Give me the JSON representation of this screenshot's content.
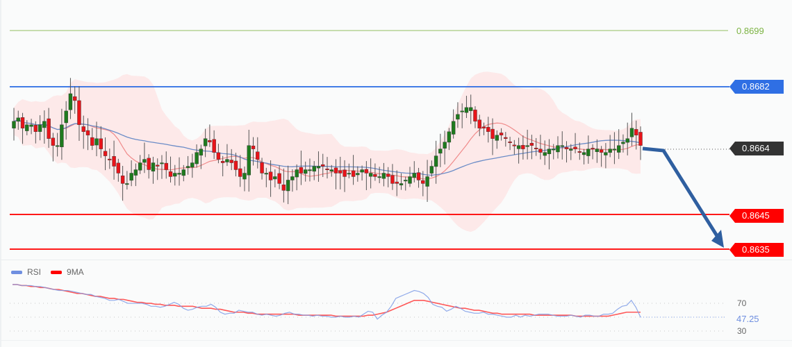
{
  "chart_data": {
    "type": "candlestick",
    "title": "",
    "price_levels": [
      {
        "name": "target-high",
        "value": 0.8699,
        "color": "#7cb342",
        "label": "0.8699",
        "style": "line-green"
      },
      {
        "name": "resistance",
        "value": 0.8682,
        "color": "#2f6fe4",
        "label": "0.8682",
        "style": "tag"
      },
      {
        "name": "current-price",
        "value": 0.8664,
        "color": "#333333",
        "label": "0.8664",
        "style": "tag-dotted"
      },
      {
        "name": "support-1",
        "value": 0.8645,
        "color": "#ff0000",
        "label": "0.8645",
        "style": "tag"
      },
      {
        "name": "support-2",
        "value": 0.8635,
        "color": "#ff0000",
        "label": "0.8635",
        "style": "tag"
      }
    ],
    "ylim": [
      0.862,
      0.8708
    ],
    "forecast_arrow": {
      "from": [
        925,
        214
      ],
      "via": [
        955,
        217
      ],
      "to": [
        1042,
        357
      ],
      "color": "#2f5fa0"
    },
    "candles_close_path": [
      0.8672,
      0.8673,
      0.867,
      0.8671,
      0.8671,
      0.8669,
      0.8671,
      0.8672,
      0.8667,
      0.8665,
      0.8665,
      0.8671,
      0.8675,
      0.868,
      0.8678,
      0.8671,
      0.8669,
      0.8668,
      0.8665,
      0.8667,
      0.8664,
      0.8662,
      0.8661,
      0.8659,
      0.8657,
      0.8654,
      0.8654,
      0.8657,
      0.8658,
      0.866,
      0.8661,
      0.8658,
      0.866,
      0.8659,
      0.866,
      0.8658,
      0.8656,
      0.8657,
      0.8657,
      0.8658,
      0.8659,
      0.866,
      0.8663,
      0.8664,
      0.8667,
      0.8666,
      0.8663,
      0.8661,
      0.866,
      0.8661,
      0.866,
      0.8658,
      0.8656,
      0.8657,
      0.8665,
      0.8664,
      0.8661,
      0.8657,
      0.8657,
      0.8655,
      0.8656,
      0.8654,
      0.8652,
      0.8655,
      0.8656,
      0.8658,
      0.8657,
      0.8658,
      0.8658,
      0.8659,
      0.8659,
      0.8659,
      0.8658,
      0.8658,
      0.8657,
      0.8657,
      0.8656,
      0.8657,
      0.8656,
      0.8657,
      0.8658,
      0.8657,
      0.8657,
      0.8656,
      0.8656,
      0.8657,
      0.8656,
      0.8654,
      0.8654,
      0.8654,
      0.8655,
      0.8656,
      0.8657,
      0.8655,
      0.8654,
      0.8656,
      0.8659,
      0.8662,
      0.8664,
      0.8666,
      0.8669,
      0.8672,
      0.8674,
      0.8675,
      0.8676,
      0.8676,
      0.8672,
      0.867,
      0.867,
      0.8669,
      0.8667,
      0.8668,
      0.8668,
      0.8667,
      0.8666,
      0.8665,
      0.8665,
      0.8664,
      0.8665,
      0.8665,
      0.8664,
      0.8663,
      0.8663,
      0.8664,
      0.8664,
      0.8665,
      0.8665,
      0.8664,
      0.8664,
      0.8664,
      0.8663,
      0.8663,
      0.8664,
      0.8664,
      0.8664,
      0.8663,
      0.8663,
      0.8664,
      0.8664,
      0.8665,
      0.8666,
      0.8667,
      0.867,
      0.8668,
      0.8665
    ],
    "indicators": {
      "bollinger_bands": {
        "fill": "#fde3e3"
      },
      "ma_fast": {
        "color": "#f08a8a"
      },
      "ma_slow": {
        "color": "#6b8cc7"
      }
    },
    "rsi_panel": {
      "legend": [
        {
          "label": "RSI",
          "color": "#6f8fe0"
        },
        {
          "label": "9MA",
          "color": "#ff0000"
        }
      ],
      "levels": [
        70,
        30
      ],
      "current_value": "47.25",
      "rsi_values": [
        80,
        80,
        79,
        79,
        79,
        78,
        78,
        77,
        76,
        75,
        74,
        74,
        74,
        73,
        72,
        71,
        70,
        70,
        68,
        67,
        66,
        64,
        64,
        65,
        63,
        61,
        61,
        61,
        61,
        60,
        58,
        58,
        57,
        58,
        60,
        62,
        60,
        56,
        54,
        55,
        57,
        58,
        58,
        60,
        57,
        52,
        50,
        51,
        51,
        54,
        53,
        52,
        52,
        50,
        49,
        50,
        49,
        48,
        49,
        51,
        52,
        50,
        50,
        49,
        49,
        48,
        49,
        48,
        48,
        47,
        47,
        48,
        47,
        47,
        48,
        47,
        50,
        53,
        52,
        45,
        49,
        52,
        58,
        66,
        68,
        70,
        72,
        74,
        73,
        71,
        67,
        60,
        58,
        57,
        53,
        55,
        58,
        56,
        53,
        52,
        51,
        51,
        52,
        50,
        50,
        49,
        48,
        47,
        47,
        49,
        47,
        49,
        48,
        49,
        50,
        50,
        50,
        49,
        48,
        48,
        48,
        49,
        48,
        47,
        49,
        49,
        48,
        48,
        50,
        50,
        51,
        55,
        58,
        59,
        64,
        57,
        47
      ],
      "ma_values": [
        80,
        80,
        79,
        79,
        78,
        78,
        77,
        77,
        76,
        75,
        75,
        74,
        73,
        72,
        71,
        71,
        70,
        69,
        68,
        68,
        67,
        66,
        66,
        65,
        65,
        64,
        63,
        62,
        62,
        61,
        61,
        60,
        60,
        59,
        59,
        59,
        58,
        58,
        58,
        58,
        57,
        56,
        56,
        56,
        55,
        55,
        54,
        53,
        52,
        52,
        52,
        51,
        51,
        50,
        50,
        50,
        50,
        50,
        50,
        50,
        50,
        50,
        49,
        49,
        49,
        49,
        49,
        49,
        49,
        49,
        48,
        48,
        48,
        48,
        48,
        48,
        48,
        49,
        49,
        50,
        51,
        52,
        54,
        56,
        58,
        60,
        62,
        64,
        64,
        64,
        63,
        62,
        61,
        60,
        59,
        58,
        57,
        56,
        56,
        55,
        54,
        54,
        53,
        52,
        51,
        51,
        50,
        50,
        50,
        50,
        50,
        50,
        50,
        49,
        49,
        49,
        49,
        49,
        49,
        49,
        49,
        49,
        48,
        48,
        48,
        48,
        48,
        48,
        48,
        48,
        49,
        50,
        51,
        52,
        52,
        52,
        52
      ]
    }
  },
  "labels": {
    "level_0_8699": "0.8699",
    "level_0_8682": "0.8682",
    "level_0_8664": "0.8664",
    "level_0_8645": "0.8645",
    "level_0_8635": "0.8635",
    "rsi_legend_rsi": "RSI",
    "rsi_legend_ma": "9MA",
    "rsi_level_70": "70",
    "rsi_level_30": "30",
    "rsi_current": "47.25"
  },
  "colors": {
    "green_level": "#7cb342",
    "blue_level": "#2f6fe4",
    "current": "#333333",
    "red_level": "#ff0000",
    "bull": "#1e7a1e",
    "bear": "#e8141a",
    "arrow": "#2f5fa0"
  }
}
